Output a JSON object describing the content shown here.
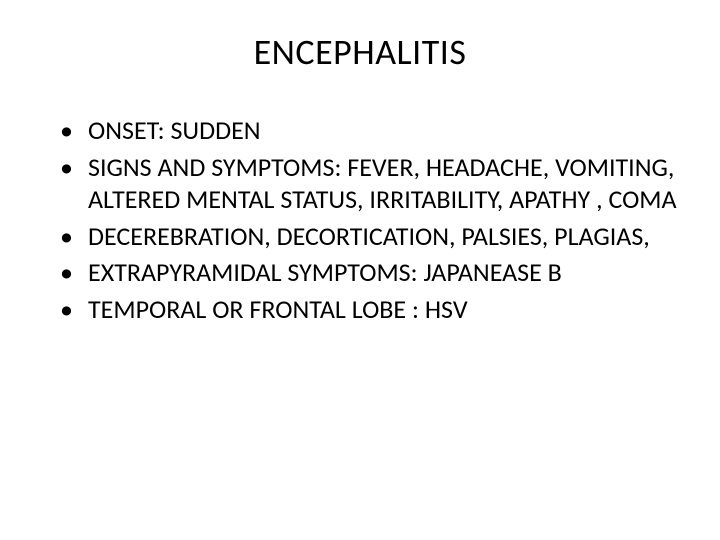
{
  "slide": {
    "title": "ENCEPHALITIS",
    "bullets": [
      "ONSET: SUDDEN",
      "SIGNS AND SYMPTOMS: FEVER, HEADACHE, VOMITING, ALTERED MENTAL STATUS, IRRITABILITY, APATHY , COMA",
      "DECEREBRATION, DECORTICATION, PALSIES, PLAGIAS,",
      "EXTRAPYRAMIDAL SYMPTOMS: JAPANEASE B",
      "TEMPORAL OR FRONTAL LOBE : HSV"
    ],
    "background_color": "#ffffff",
    "text_color": "#000000",
    "title_fontsize": 36,
    "body_fontsize": 26,
    "font_family": "Calibri"
  }
}
